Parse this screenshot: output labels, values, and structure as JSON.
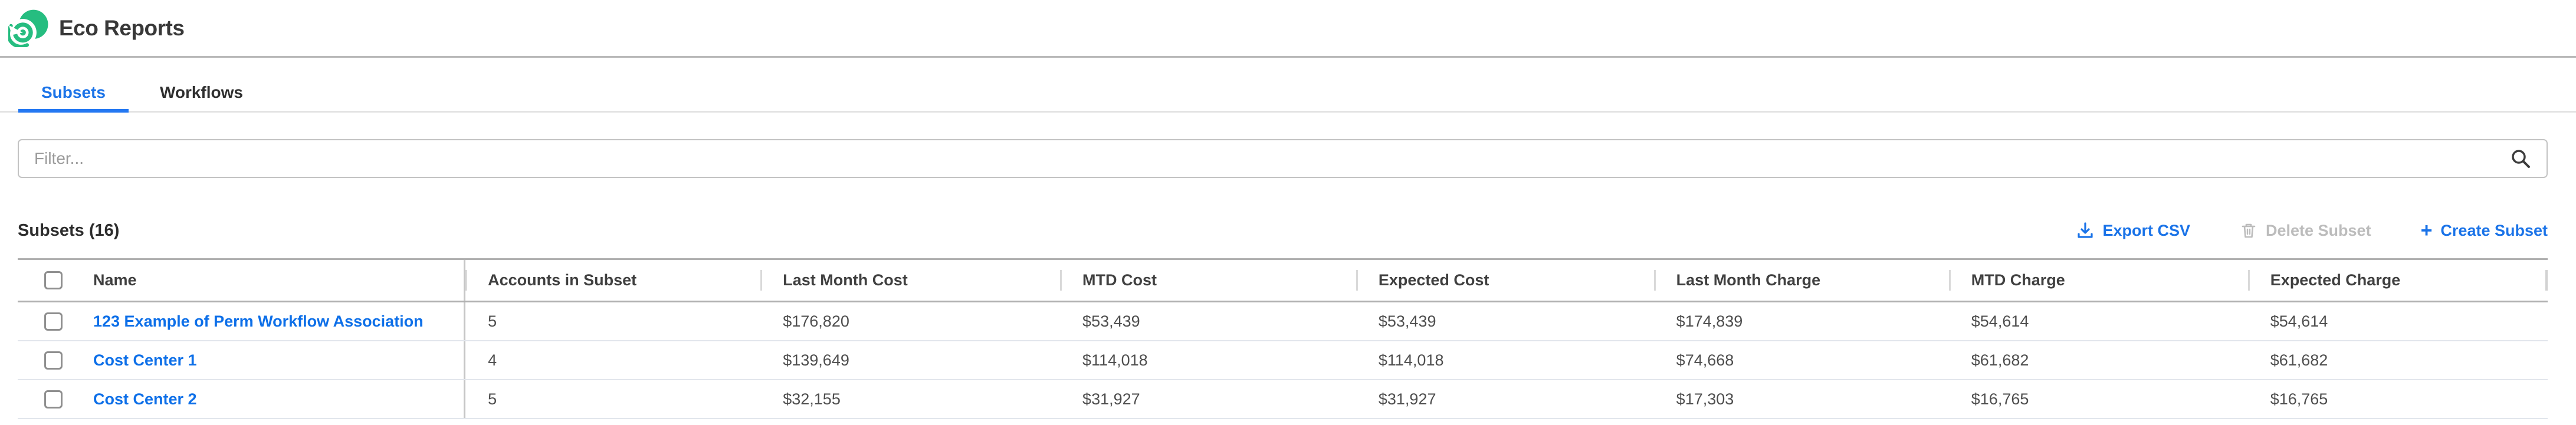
{
  "app": {
    "title": "Eco Reports"
  },
  "tabs": [
    {
      "label": "Subsets",
      "active": true
    },
    {
      "label": "Workflows",
      "active": false
    }
  ],
  "filter": {
    "placeholder": "Filter...",
    "value": ""
  },
  "toolbar": {
    "heading": "Subsets (16)",
    "export_csv_label": "Export CSV",
    "delete_subset_label": "Delete Subset",
    "create_subset_label": "Create Subset",
    "create_plus_glyph": "+"
  },
  "colors": {
    "brand_green": "#26bd80",
    "accent_blue": "#1a73e8",
    "link_blue": "#0d6fe8",
    "disabled_gray": "#bcbcbc"
  },
  "table": {
    "columns": [
      "Name",
      "Accounts in Subset",
      "Last Month Cost",
      "MTD Cost",
      "Expected Cost",
      "Last Month Charge",
      "MTD Charge",
      "Expected Charge"
    ],
    "rows": [
      {
        "name": "123 Example of Perm Workflow Association",
        "accounts_in_subset": "5",
        "last_month_cost": "$176,820",
        "mtd_cost": "$53,439",
        "expected_cost": "$53,439",
        "last_month_charge": "$174,839",
        "mtd_charge": "$54,614",
        "expected_charge": "$54,614"
      },
      {
        "name": "Cost Center 1",
        "accounts_in_subset": "4",
        "last_month_cost": "$139,649",
        "mtd_cost": "$114,018",
        "expected_cost": "$114,018",
        "last_month_charge": "$74,668",
        "mtd_charge": "$61,682",
        "expected_charge": "$61,682"
      },
      {
        "name": "Cost Center 2",
        "accounts_in_subset": "5",
        "last_month_cost": "$32,155",
        "mtd_cost": "$31,927",
        "expected_cost": "$31,927",
        "last_month_charge": "$17,303",
        "mtd_charge": "$16,765",
        "expected_charge": "$16,765"
      }
    ]
  }
}
